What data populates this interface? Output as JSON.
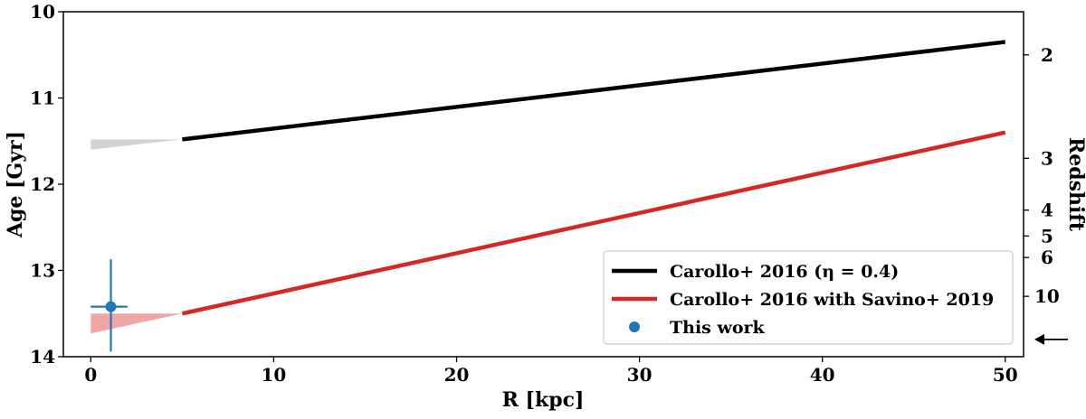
{
  "chart_data": {
    "type": "line",
    "title": "",
    "xlabel": "R [kpc]",
    "ylabel": "Age [Gyr]",
    "y2label": "Redshift",
    "xlim": [
      -1.5,
      51
    ],
    "ylim": [
      14,
      10
    ],
    "y_inverted": true,
    "xticks": [
      0,
      10,
      20,
      30,
      40,
      50
    ],
    "yticks": [
      10,
      11,
      12,
      13,
      14
    ],
    "redshift_ticks": [
      {
        "label": "2",
        "age": 10.5
      },
      {
        "label": "3",
        "age": 11.7
      },
      {
        "label": "4",
        "age": 12.3
      },
      {
        "label": "5",
        "age": 12.6
      },
      {
        "label": "6",
        "age": 12.85
      },
      {
        "label": "10",
        "age": 13.3
      }
    ],
    "arrow_marker": {
      "age": 13.8
    },
    "series": [
      {
        "name": "Carollo+ 2016 (η = 0.4)",
        "color": "#000000",
        "x": [
          5,
          50
        ],
        "y": [
          11.48,
          10.35
        ],
        "band": {
          "color": "#d3d3d3",
          "x": [
            0,
            5
          ],
          "y_upper": [
            11.48,
            11.48
          ],
          "y_lower": [
            11.6,
            11.48
          ]
        }
      },
      {
        "name": "Carollo+ 2016 with Savino+ 2019",
        "color": "#d62728",
        "x": [
          5,
          50
        ],
        "y": [
          13.5,
          11.4
        ],
        "band": {
          "color": "#f2a5a5",
          "x": [
            0,
            5
          ],
          "y_upper": [
            13.5,
            13.5
          ],
          "y_lower": [
            13.73,
            13.5
          ]
        }
      },
      {
        "name": "This work",
        "type": "scatter",
        "color": "#1f77b4",
        "x": [
          1.1
        ],
        "y": [
          13.42
        ],
        "xerr": [
          [
            1.1
          ],
          [
            0.9
          ]
        ],
        "yerr": [
          [
            0.55
          ],
          [
            0.52
          ]
        ]
      }
    ],
    "legend": {
      "position": "lower-right",
      "entries": [
        "Carollo+ 2016 (η = 0.4)",
        "Carollo+ 2016 with Savino+ 2019",
        "This work"
      ]
    }
  }
}
